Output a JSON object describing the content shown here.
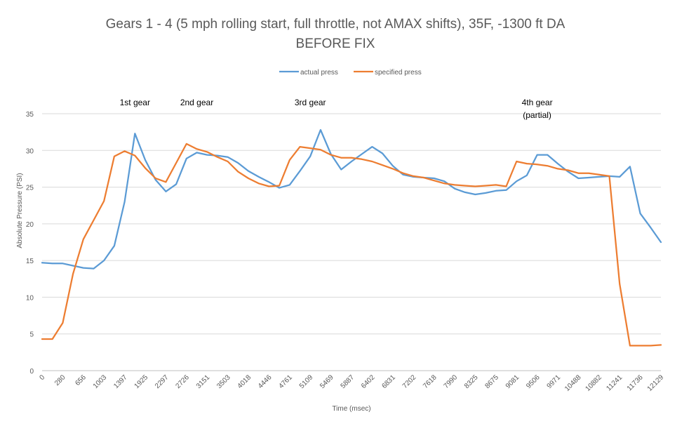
{
  "chart_data": {
    "type": "line",
    "title": "Gears 1 - 4 (5 mph rolling start, full throttle, not AMAX shifts), 35F, -1300 ft DA",
    "subtitle": "BEFORE FIX",
    "xlabel": "Time (msec)",
    "ylabel": "Absolute Pressure (PSI)",
    "ylim": [
      0,
      35
    ],
    "y_ticks": [
      0,
      5,
      10,
      15,
      20,
      25,
      30,
      35
    ],
    "grid": true,
    "legend_position": "top",
    "x_tick_labels": [
      "0",
      "280",
      "656",
      "1003",
      "1397",
      "1925",
      "2297",
      "2726",
      "3151",
      "3503",
      "4018",
      "4446",
      "4761",
      "5109",
      "5469",
      "5887",
      "6402",
      "6831",
      "7202",
      "7618",
      "7990",
      "8325",
      "8675",
      "9081",
      "9506",
      "9971",
      "10488",
      "10882",
      "11241",
      "11736",
      "12129"
    ],
    "series": [
      {
        "name": "actual press",
        "color": "#5B9BD5",
        "values": [
          14.7,
          14.6,
          14.6,
          14.3,
          14.0,
          13.9,
          15.0,
          17.0,
          23.0,
          32.3,
          28.7,
          26.0,
          24.4,
          25.4,
          28.9,
          29.7,
          29.4,
          29.3,
          29.1,
          28.3,
          27.2,
          26.4,
          25.7,
          24.9,
          25.3,
          27.2,
          29.2,
          32.8,
          29.5,
          27.4,
          28.5,
          29.5,
          30.5,
          29.6,
          27.9,
          26.7,
          26.4,
          26.3,
          26.2,
          25.8,
          24.8,
          24.3,
          24.0,
          24.2,
          24.5,
          24.6,
          25.8,
          26.6,
          29.4,
          29.4,
          28.2,
          27.1,
          26.2,
          26.3,
          26.4,
          26.5,
          26.4,
          27.8,
          21.4,
          19.5,
          17.5
        ]
      },
      {
        "name": "specified press",
        "color": "#ED7D31",
        "values": [
          4.3,
          4.3,
          6.5,
          13.2,
          17.9,
          20.5,
          23.1,
          29.2,
          29.9,
          29.3,
          27.6,
          26.2,
          25.7,
          28.3,
          30.9,
          30.2,
          29.8,
          29.1,
          28.5,
          27.1,
          26.2,
          25.5,
          25.1,
          25.2,
          28.7,
          30.5,
          30.3,
          30.1,
          29.4,
          29.0,
          29.0,
          28.8,
          28.5,
          28.0,
          27.5,
          26.9,
          26.5,
          26.3,
          25.9,
          25.5,
          25.3,
          25.2,
          25.1,
          25.2,
          25.3,
          25.1,
          28.5,
          28.2,
          28.1,
          27.9,
          27.5,
          27.3,
          26.9,
          26.9,
          26.7,
          26.5,
          11.8,
          3.4,
          3.4,
          3.4,
          3.5
        ]
      }
    ],
    "annotations": [
      {
        "lines": [
          "1st gear"
        ],
        "x_index": 9
      },
      {
        "lines": [
          "2nd gear"
        ],
        "x_index": 15
      },
      {
        "lines": [
          "3rd gear"
        ],
        "x_index": 26
      },
      {
        "lines": [
          "4th gear",
          "(partial)"
        ],
        "x_index": 48
      }
    ]
  }
}
